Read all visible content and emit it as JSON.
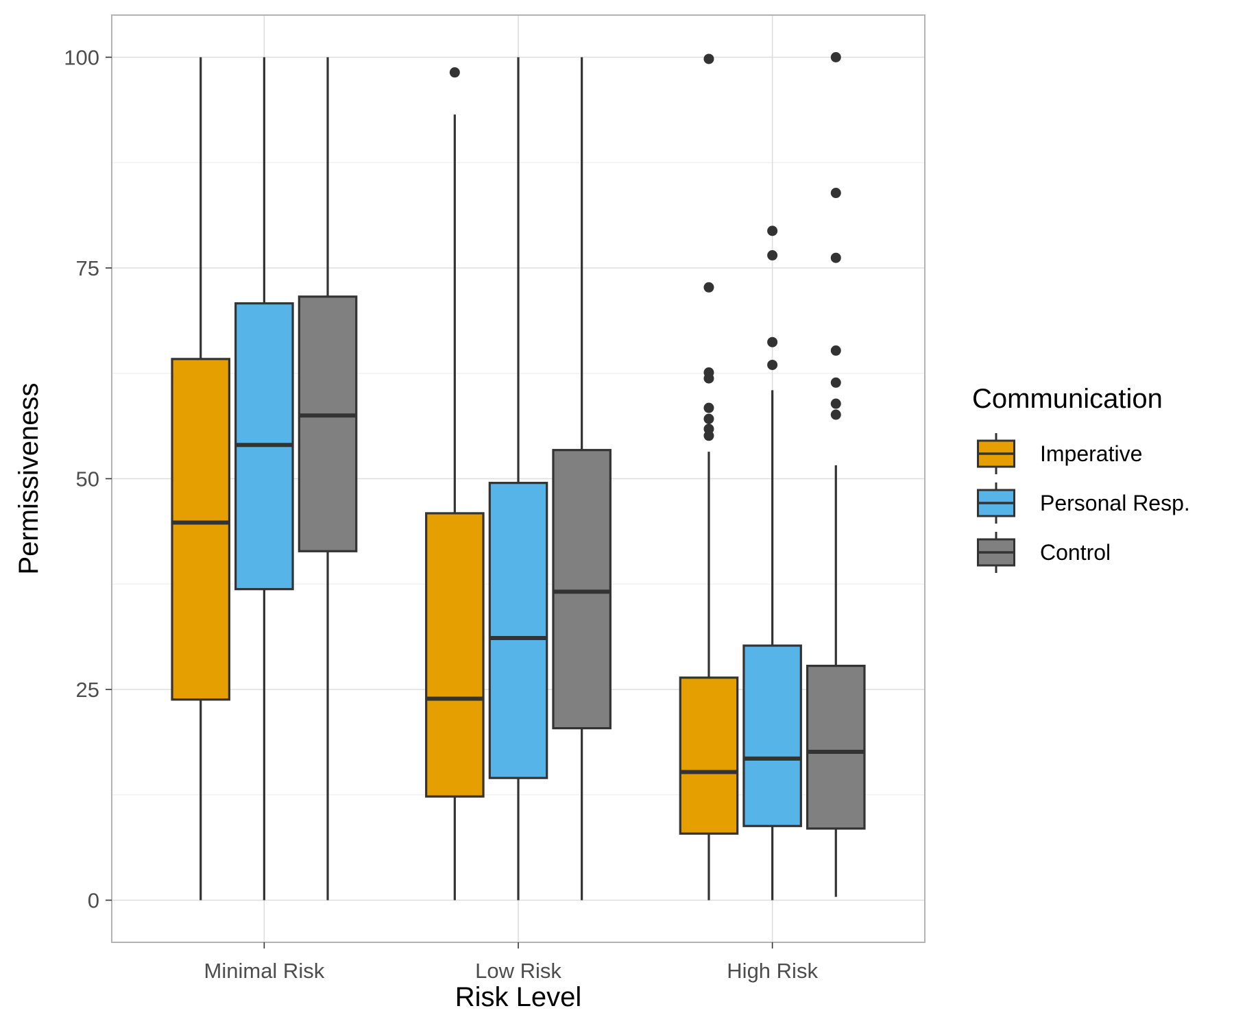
{
  "chart_data": {
    "type": "boxplot",
    "xlabel": "Risk Level",
    "ylabel": "Permissiveness",
    "categories": [
      "Minimal Risk",
      "Low Risk",
      "High Risk"
    ],
    "y_ticks": [
      "0",
      "25",
      "50",
      "75",
      "100"
    ],
    "ylim": [
      -5,
      105
    ],
    "grid": true,
    "legend": {
      "title": "Communication",
      "placement": "right"
    },
    "series": [
      {
        "name": "Imperative",
        "color": "#E69F00",
        "boxes": [
          {
            "min": 0,
            "q1": 23.8,
            "median": 44.8,
            "q3": 64.2,
            "max": 100,
            "outliers": []
          },
          {
            "min": 0,
            "q1": 12.3,
            "median": 23.9,
            "q3": 45.9,
            "max": 93.2,
            "outliers": [
              98.2
            ]
          },
          {
            "min": 0,
            "q1": 7.9,
            "median": 15.2,
            "q3": 26.4,
            "max": 53.2,
            "outliers": [
              55.1,
              55.9,
              57.1,
              58.4,
              61.9,
              62.6,
              72.7,
              99.8
            ]
          }
        ]
      },
      {
        "name": "Personal Resp.",
        "color": "#56B4E9",
        "boxes": [
          {
            "min": 0,
            "q1": 36.9,
            "median": 54.0,
            "q3": 70.8,
            "max": 100,
            "outliers": []
          },
          {
            "min": 0,
            "q1": 14.5,
            "median": 31.1,
            "q3": 49.5,
            "max": 100,
            "outliers": []
          },
          {
            "min": 0,
            "q1": 8.8,
            "median": 16.8,
            "q3": 30.2,
            "max": 60.5,
            "outliers": [
              63.5,
              66.2,
              76.5,
              79.4
            ]
          }
        ]
      },
      {
        "name": "Control",
        "color": "#808080",
        "boxes": [
          {
            "min": 0,
            "q1": 41.4,
            "median": 57.5,
            "q3": 71.6,
            "max": 100,
            "outliers": []
          },
          {
            "min": 0,
            "q1": 20.4,
            "median": 36.6,
            "q3": 53.4,
            "max": 100,
            "outliers": []
          },
          {
            "min": 0.4,
            "q1": 8.5,
            "median": 17.6,
            "q3": 27.8,
            "max": 51.6,
            "outliers": [
              57.6,
              58.9,
              61.4,
              65.2,
              76.2,
              83.9,
              100
            ]
          }
        ]
      }
    ]
  }
}
